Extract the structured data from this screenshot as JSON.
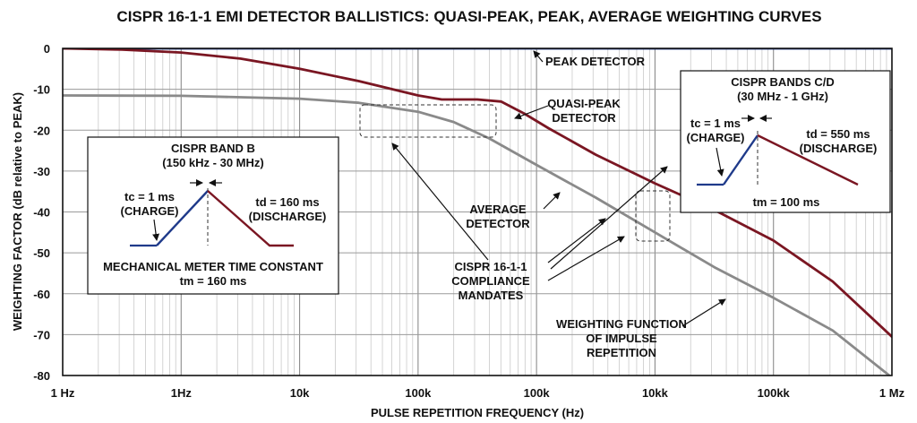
{
  "chart_data": {
    "type": "line",
    "title": "CISPR 16-1-1 EMI DETECTOR BALLISTICS: QUASI-PEAK, PEAK, AVERAGE WEIGHTING CURVES",
    "xlabel": "PULSE REPETITION FREQUENCY (Hz)",
    "ylabel": "WEIGHTING FACTOR (dB relative to PEAK)",
    "x_scale": "log",
    "x_tick_labels": [
      "1 Hz",
      "1Hz",
      "10k",
      "100k",
      "100k",
      "10kk",
      "100kk",
      "1 Mz"
    ],
    "y_ticks": [
      0,
      -10,
      -20,
      -30,
      -40,
      -50,
      -60,
      -70,
      -80
    ],
    "ylim": [
      -80,
      0
    ],
    "grid": true,
    "series": [
      {
        "name": "PEAK DETECTOR",
        "color": "#1f3a8a",
        "x": [
          0,
          7
        ],
        "y": [
          0,
          0
        ]
      },
      {
        "name": "QUASI-PEAK DETECTOR",
        "color": "#7a1622",
        "x": [
          0,
          0.5,
          1.0,
          1.5,
          2.0,
          2.5,
          3.0,
          3.2,
          3.5,
          3.7,
          3.9,
          4.1,
          4.5,
          5.0,
          5.5,
          6.0,
          6.5,
          7.0
        ],
        "y": [
          0,
          -0.3,
          -1.0,
          -2.5,
          -5.0,
          -8.0,
          -11.5,
          -12.5,
          -12.5,
          -13.0,
          -16.0,
          -19.5,
          -26.0,
          -33.0,
          -39.5,
          -47.0,
          -57.0,
          -70.5
        ]
      },
      {
        "name": "AVERAGE DETECTOR",
        "color": "#8a8a8a",
        "x": [
          0,
          1.0,
          2.0,
          2.5,
          3.0,
          3.3,
          3.6,
          4.0,
          4.5,
          5.0,
          5.5,
          6.0,
          6.5,
          7.0
        ],
        "y": [
          -11.5,
          -11.6,
          -12.3,
          -13.3,
          -15.5,
          -18.0,
          -22.0,
          -28.5,
          -36.5,
          -45.0,
          -53.5,
          -61.0,
          -69.0,
          -80.5
        ]
      }
    ],
    "annotations": {
      "peak": "PEAK DETECTOR",
      "qp1": "QUASI-PEAK",
      "qp2": "DETECTOR",
      "avg1": "AVERAGE",
      "avg2": "DETECTOR",
      "cm1": "CISPR 16-1-1",
      "cm2": "COMPLIANCE",
      "cm3": "MANDATES",
      "wf1": "WEIGHTING FUNCTION",
      "wf2": "OF IMPULSE",
      "wf3": "REPETITION"
    },
    "band_b": {
      "title": "CISPR BAND B",
      "range": "(150 kHz - 30 MHz)",
      "tc": "tc = 1 ms",
      "charge": "(CHARGE)",
      "td": "td = 160 ms",
      "discharge": "(DISCHARGE)",
      "note": "MECHANICAL METER TIME CONSTANT",
      "tm": "tm = 160 ms"
    },
    "band_cd": {
      "title": "CISPR BANDS C/D",
      "range": "(30 MHz - 1 GHz)",
      "tc": "tc = 1 ms",
      "charge": "(CHARGE)",
      "td": "td = 550 ms",
      "discharge": "(DISCHARGE)",
      "tm": "tm = 100 ms"
    }
  }
}
